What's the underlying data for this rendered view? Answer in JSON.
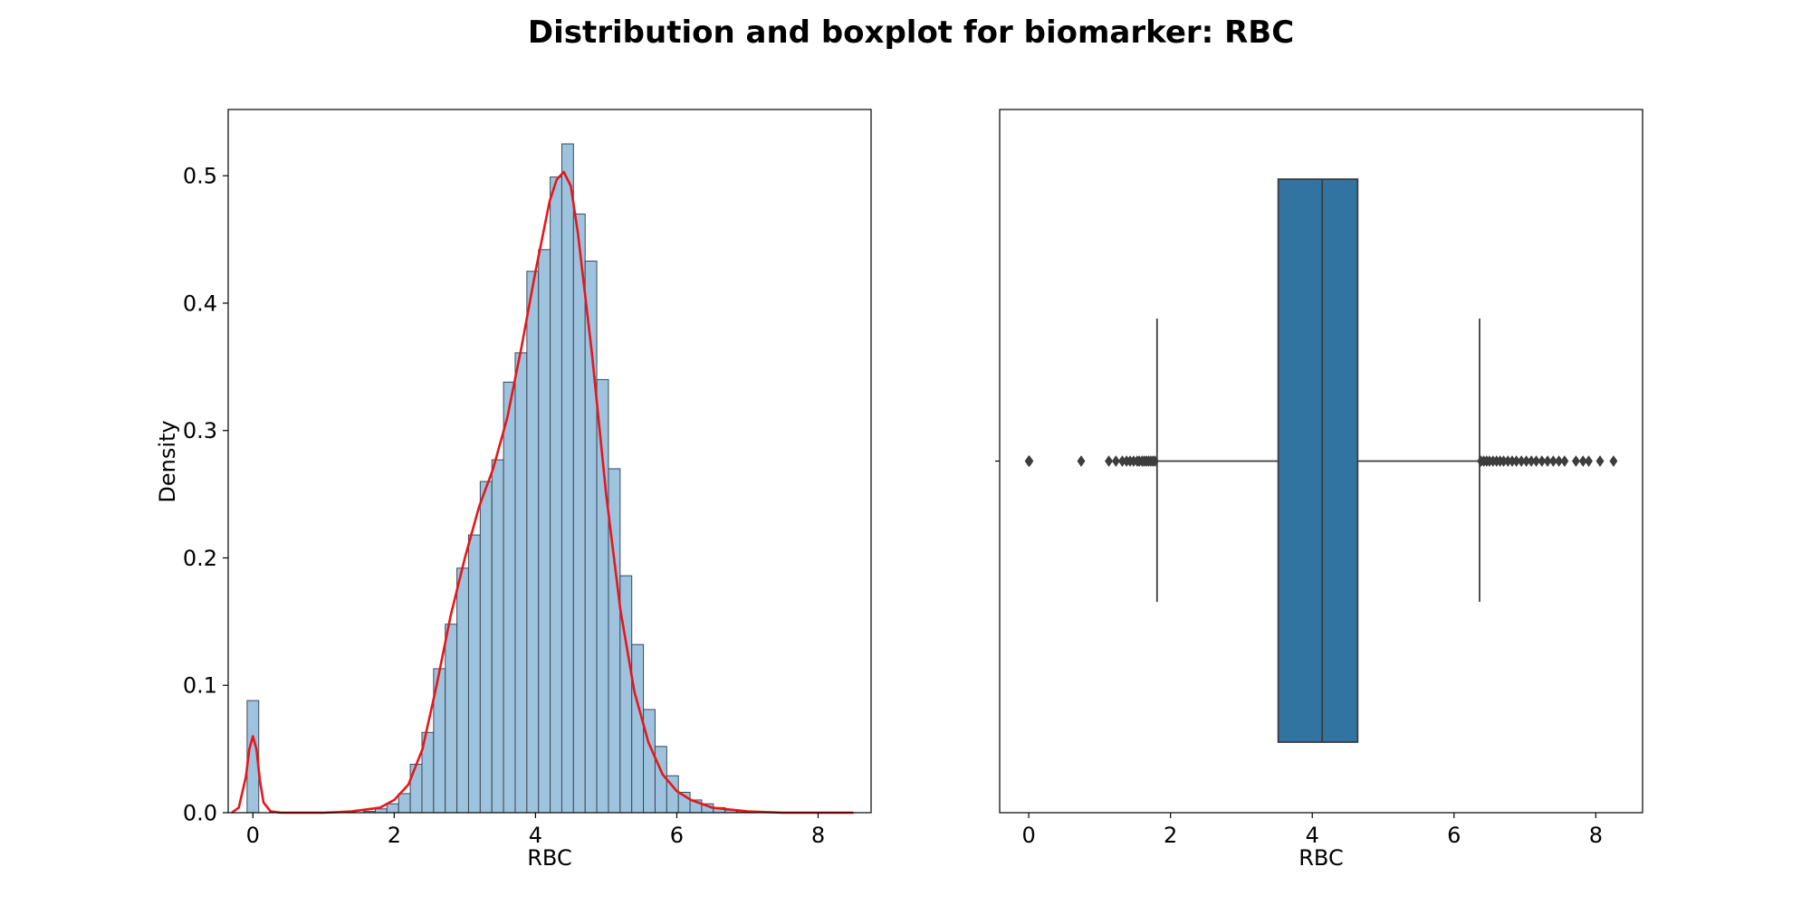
{
  "title": "Distribution and boxplot for biomarker: RBC",
  "colors": {
    "hist": "#9ec3de",
    "hist_edge": "#3c4a56",
    "kde": "#e8161a",
    "box": "#3274a1",
    "line": "#3d3d3d"
  },
  "chart_data": [
    {
      "type": "histogram",
      "xlabel": "RBC",
      "ylabel": "Density",
      "xlim": [
        -0.35,
        8.75
      ],
      "ylim": [
        0,
        0.552
      ],
      "xticks": [
        0,
        2,
        4,
        6,
        8
      ],
      "yticks": [
        0.0,
        0.1,
        0.2,
        0.3,
        0.4,
        0.5
      ],
      "yticklabels": [
        "0.0",
        "0.1",
        "0.2",
        "0.3",
        "0.4",
        "0.5"
      ],
      "bin_width": 0.165,
      "bins": [
        {
          "x": 0.0,
          "y": 0.088
        },
        {
          "x": 1.65,
          "y": 0.001
        },
        {
          "x": 1.815,
          "y": 0.003
        },
        {
          "x": 1.98,
          "y": 0.007
        },
        {
          "x": 2.145,
          "y": 0.015
        },
        {
          "x": 2.31,
          "y": 0.038
        },
        {
          "x": 2.475,
          "y": 0.063
        },
        {
          "x": 2.64,
          "y": 0.113
        },
        {
          "x": 2.805,
          "y": 0.148
        },
        {
          "x": 2.97,
          "y": 0.192
        },
        {
          "x": 3.135,
          "y": 0.218
        },
        {
          "x": 3.3,
          "y": 0.26
        },
        {
          "x": 3.465,
          "y": 0.277
        },
        {
          "x": 3.63,
          "y": 0.338
        },
        {
          "x": 3.795,
          "y": 0.361
        },
        {
          "x": 3.96,
          "y": 0.425
        },
        {
          "x": 4.125,
          "y": 0.442
        },
        {
          "x": 4.29,
          "y": 0.499
        },
        {
          "x": 4.455,
          "y": 0.525
        },
        {
          "x": 4.62,
          "y": 0.47
        },
        {
          "x": 4.785,
          "y": 0.433
        },
        {
          "x": 4.95,
          "y": 0.34
        },
        {
          "x": 5.115,
          "y": 0.27
        },
        {
          "x": 5.28,
          "y": 0.186
        },
        {
          "x": 5.445,
          "y": 0.132
        },
        {
          "x": 5.61,
          "y": 0.081
        },
        {
          "x": 5.775,
          "y": 0.052
        },
        {
          "x": 5.94,
          "y": 0.029
        },
        {
          "x": 6.105,
          "y": 0.016
        },
        {
          "x": 6.27,
          "y": 0.01
        },
        {
          "x": 6.435,
          "y": 0.007
        },
        {
          "x": 6.6,
          "y": 0.004
        },
        {
          "x": 6.765,
          "y": 0.002
        },
        {
          "x": 6.93,
          "y": 0.001
        },
        {
          "x": 7.095,
          "y": 0.001
        }
      ],
      "kde": [
        [
          -0.3,
          0.0
        ],
        [
          -0.2,
          0.004
        ],
        [
          -0.1,
          0.028
        ],
        [
          -0.05,
          0.05
        ],
        [
          0.0,
          0.06
        ],
        [
          0.05,
          0.05
        ],
        [
          0.1,
          0.025
        ],
        [
          0.15,
          0.008
        ],
        [
          0.25,
          0.001
        ],
        [
          0.4,
          0.0
        ],
        [
          1.0,
          0.0
        ],
        [
          1.4,
          0.001
        ],
        [
          1.8,
          0.004
        ],
        [
          2.0,
          0.01
        ],
        [
          2.2,
          0.022
        ],
        [
          2.4,
          0.05
        ],
        [
          2.6,
          0.1
        ],
        [
          2.8,
          0.155
        ],
        [
          3.0,
          0.2
        ],
        [
          3.2,
          0.24
        ],
        [
          3.4,
          0.27
        ],
        [
          3.6,
          0.31
        ],
        [
          3.8,
          0.365
        ],
        [
          4.0,
          0.425
        ],
        [
          4.2,
          0.48
        ],
        [
          4.3,
          0.497
        ],
        [
          4.4,
          0.503
        ],
        [
          4.5,
          0.492
        ],
        [
          4.6,
          0.455
        ],
        [
          4.8,
          0.36
        ],
        [
          5.0,
          0.25
        ],
        [
          5.2,
          0.16
        ],
        [
          5.4,
          0.095
        ],
        [
          5.6,
          0.055
        ],
        [
          5.8,
          0.03
        ],
        [
          6.0,
          0.017
        ],
        [
          6.2,
          0.01
        ],
        [
          6.5,
          0.004
        ],
        [
          7.0,
          0.001
        ],
        [
          7.5,
          0.0
        ],
        [
          8.5,
          0.0
        ]
      ]
    },
    {
      "type": "boxplot",
      "xlabel": "RBC",
      "xlim": [
        -0.41,
        8.66
      ],
      "xticks": [
        0,
        2,
        4,
        6,
        8
      ],
      "box": {
        "q1": 3.52,
        "median": 4.14,
        "q3": 4.64,
        "whisker_low": 1.81,
        "whisker_high": 6.36
      },
      "outliers": [
        0.0,
        0.01,
        0.74,
        1.13,
        1.23,
        1.32,
        1.38,
        1.43,
        1.48,
        1.53,
        1.56,
        1.6,
        1.63,
        1.66,
        1.69,
        1.72,
        1.75,
        1.78,
        6.38,
        6.42,
        6.46,
        6.5,
        6.55,
        6.6,
        6.65,
        6.7,
        6.76,
        6.82,
        6.88,
        6.95,
        7.02,
        7.09,
        7.16,
        7.24,
        7.32,
        7.4,
        7.48,
        7.56,
        7.72,
        7.82,
        7.9,
        8.06,
        8.25
      ]
    }
  ]
}
